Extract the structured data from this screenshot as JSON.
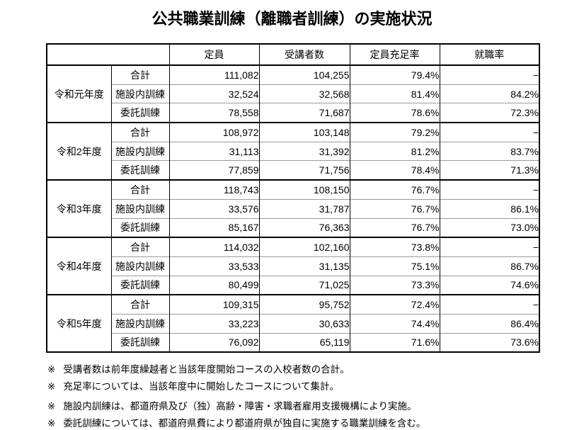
{
  "title": "公共職業訓練（離職者訓練）の実施状況",
  "table": {
    "headers": [
      "定員",
      "受講者数",
      "定員充足率",
      "就職率"
    ],
    "groups": [
      {
        "year": "令和元年度",
        "rows": [
          {
            "category": "合計",
            "capacity": "111,082",
            "participants": "104,255",
            "fill_rate": "79.4%",
            "employment_rate": "−"
          },
          {
            "category": "施設内訓練",
            "capacity": "32,524",
            "participants": "32,568",
            "fill_rate": "81.4%",
            "employment_rate": "84.2%"
          },
          {
            "category": "委託訓練",
            "capacity": "78,558",
            "participants": "71,687",
            "fill_rate": "78.6%",
            "employment_rate": "72.3%"
          }
        ]
      },
      {
        "year": "令和2年度",
        "rows": [
          {
            "category": "合計",
            "capacity": "108,972",
            "participants": "103,148",
            "fill_rate": "79.2%",
            "employment_rate": "−"
          },
          {
            "category": "施設内訓練",
            "capacity": "31,113",
            "participants": "31,392",
            "fill_rate": "81.2%",
            "employment_rate": "83.7%"
          },
          {
            "category": "委託訓練",
            "capacity": "77,859",
            "participants": "71,756",
            "fill_rate": "78.4%",
            "employment_rate": "71.3%"
          }
        ]
      },
      {
        "year": "令和3年度",
        "rows": [
          {
            "category": "合計",
            "capacity": "118,743",
            "participants": "108,150",
            "fill_rate": "76.7%",
            "employment_rate": "−"
          },
          {
            "category": "施設内訓練",
            "capacity": "33,576",
            "participants": "31,787",
            "fill_rate": "76.7%",
            "employment_rate": "86.1%"
          },
          {
            "category": "委託訓練",
            "capacity": "85,167",
            "participants": "76,363",
            "fill_rate": "76.7%",
            "employment_rate": "73.0%"
          }
        ]
      },
      {
        "year": "令和4年度",
        "rows": [
          {
            "category": "合計",
            "capacity": "114,032",
            "participants": "102,160",
            "fill_rate": "73.8%",
            "employment_rate": "−"
          },
          {
            "category": "施設内訓練",
            "capacity": "33,533",
            "participants": "31,135",
            "fill_rate": "75.1%",
            "employment_rate": "86.7%"
          },
          {
            "category": "委託訓練",
            "capacity": "80,499",
            "participants": "71,025",
            "fill_rate": "73.3%",
            "employment_rate": "74.6%"
          }
        ]
      },
      {
        "year": "令和5年度",
        "rows": [
          {
            "category": "合計",
            "capacity": "109,315",
            "participants": "95,752",
            "fill_rate": "72.4%",
            "employment_rate": "−"
          },
          {
            "category": "施設内訓練",
            "capacity": "33,223",
            "participants": "30,633",
            "fill_rate": "74.4%",
            "employment_rate": "86.4%"
          },
          {
            "category": "委託訓練",
            "capacity": "76,092",
            "participants": "65,119",
            "fill_rate": "71.6%",
            "employment_rate": "73.6%"
          }
        ]
      }
    ]
  },
  "footnotes": {
    "marker": "※",
    "items": [
      "受講者数は前年度繰越者と当該年度開始コースの入校者数の合計。",
      "充足率については、当該年度中に開始したコースについて集計。",
      "施設内訓練は、都道府県及び（独）高齢・障害・求職者雇用支援機構により実施。",
      "委託訓練については、都道府県費により都道府県が独自に実施する職業訓練を含む。"
    ]
  }
}
